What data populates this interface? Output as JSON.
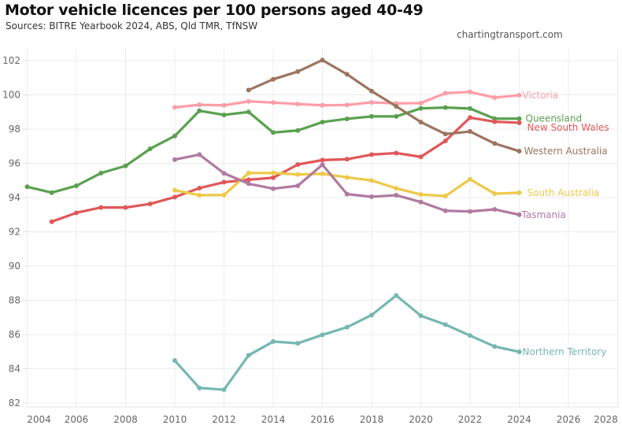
{
  "chart_data": {
    "type": "line",
    "title": "Motor vehicle licences per 100 persons aged 40-49",
    "subtitle": "Sources: BITRE Yearbook 2024, ABS, Qld TMR, TfNSW",
    "credit": "chartingtransport.com",
    "xlabel": "",
    "ylabel": "",
    "xlim": [
      2004,
      2028
    ],
    "ylim": [
      81.8,
      102.7
    ],
    "x_ticks": [
      2004,
      2006,
      2008,
      2010,
      2012,
      2014,
      2016,
      2018,
      2020,
      2022,
      2024,
      2026,
      2028
    ],
    "y_ticks": [
      82,
      84,
      86,
      88,
      90,
      92,
      94,
      96,
      98,
      100,
      102
    ],
    "grid": true,
    "legend": "direct labels at line ends (right)",
    "series": [
      {
        "name": "Victoria",
        "color": "#ff9da7",
        "x": [
          2010,
          2011,
          2012,
          2013,
          2014,
          2015,
          2016,
          2017,
          2018,
          2019,
          2020,
          2021,
          2022,
          2023,
          2024
        ],
        "values": [
          99.27,
          99.42,
          99.39,
          99.62,
          99.55,
          99.46,
          99.39,
          99.41,
          99.56,
          99.5,
          99.52,
          100.1,
          100.17,
          99.84,
          99.98
        ]
      },
      {
        "name": "Queensland",
        "color": "#59a14f",
        "x": [
          2004,
          2005,
          2006,
          2007,
          2008,
          2009,
          2010,
          2011,
          2012,
          2013,
          2014,
          2015,
          2016,
          2017,
          2018,
          2019,
          2020,
          2021,
          2022,
          2023,
          2024
        ],
        "values": [
          94.63,
          94.29,
          94.69,
          95.43,
          95.85,
          96.85,
          97.6,
          99.07,
          98.83,
          99.0,
          97.8,
          97.92,
          98.41,
          98.6,
          98.74,
          98.74,
          99.21,
          99.26,
          99.2,
          98.61,
          98.61
        ]
      },
      {
        "name": "New South Wales",
        "color": "#e15759",
        "x": [
          2005,
          2006,
          2007,
          2008,
          2009,
          2010,
          2011,
          2012,
          2013,
          2014,
          2015,
          2016,
          2017,
          2018,
          2019,
          2020,
          2021,
          2022,
          2023,
          2024
        ],
        "values": [
          92.59,
          93.11,
          93.42,
          93.42,
          93.63,
          94.03,
          94.55,
          94.9,
          95.04,
          95.16,
          95.93,
          96.19,
          96.24,
          96.51,
          96.6,
          96.38,
          97.31,
          98.67,
          98.43,
          98.37
        ]
      },
      {
        "name": "Western Australia",
        "color": "#9c755f",
        "x": [
          2013,
          2014,
          2015,
          2016,
          2017,
          2018,
          2019,
          2020,
          2021,
          2022,
          2023,
          2024
        ],
        "values": [
          100.28,
          100.91,
          101.36,
          102.03,
          101.2,
          100.22,
          99.33,
          98.41,
          97.71,
          97.86,
          97.16,
          96.71
        ]
      },
      {
        "name": "South Australia",
        "color": "#edc948",
        "x": [
          2010,
          2011,
          2012,
          2013,
          2014,
          2015,
          2016,
          2017,
          2018,
          2019,
          2020,
          2021,
          2022,
          2023,
          2024
        ],
        "values": [
          94.43,
          94.14,
          94.15,
          95.43,
          95.44,
          95.35,
          95.39,
          95.18,
          95.0,
          94.54,
          94.18,
          94.09,
          95.07,
          94.23,
          94.28
        ]
      },
      {
        "name": "Tasmania",
        "color": "#b07aa1",
        "x": [
          2010,
          2011,
          2012,
          2013,
          2014,
          2015,
          2016,
          2017,
          2018,
          2019,
          2020,
          2021,
          2022,
          2023,
          2024
        ],
        "values": [
          96.22,
          96.51,
          95.42,
          94.81,
          94.52,
          94.69,
          95.92,
          94.2,
          94.05,
          94.14,
          93.74,
          93.23,
          93.19,
          93.31,
          93.0
        ]
      },
      {
        "name": "Northern Territory",
        "color": "#76b7b2",
        "x": [
          2010,
          2011,
          2012,
          2013,
          2014,
          2015,
          2016,
          2017,
          2018,
          2019,
          2020,
          2021,
          2022,
          2023,
          2024
        ],
        "values": [
          84.48,
          82.88,
          82.78,
          84.79,
          85.59,
          85.49,
          85.98,
          86.43,
          87.14,
          88.28,
          87.1,
          86.58,
          85.94,
          85.3,
          84.99
        ]
      }
    ]
  }
}
